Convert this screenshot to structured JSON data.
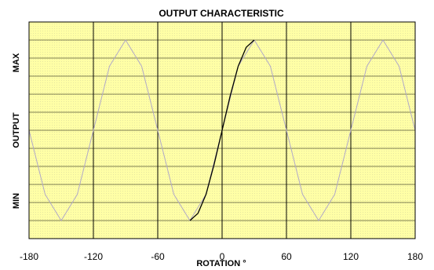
{
  "chart_data": {
    "type": "line",
    "title": "OUTPUT CHARACTERISTIC",
    "xlabel": "ROTATION °",
    "ylabel": "OUTPUT",
    "y_side_labels": {
      "top": "MAX",
      "bottom": "MIN"
    },
    "xlim": [
      -180,
      180
    ],
    "x_ticks": [
      -180,
      -120,
      -60,
      0,
      60,
      120,
      180
    ],
    "x_tick_labels": [
      "-180",
      "-120",
      "-60",
      "0",
      "60",
      "120",
      "180"
    ],
    "ylim": [
      -1.2,
      1.2
    ],
    "grid": true,
    "y_gridline_count": 11,
    "x_gridlines": [
      -120,
      -60,
      0,
      60,
      120
    ],
    "series": [
      {
        "style": "faint-repeat",
        "x": [
          -180,
          -165,
          -150,
          -135,
          -120,
          -105,
          -90,
          -75,
          -60,
          -45,
          -30,
          -15,
          0,
          15,
          30,
          45,
          60,
          75,
          90,
          105,
          120,
          135,
          150,
          165,
          180
        ],
        "values": [
          0,
          -0.71,
          -1,
          -0.71,
          0,
          0.71,
          1,
          0.71,
          0,
          -0.71,
          -1,
          -0.71,
          0,
          0.71,
          1,
          0.71,
          0,
          -0.71,
          -1,
          -0.71,
          0,
          0.71,
          1,
          0.71,
          0
        ]
      },
      {
        "style": "main-cycle",
        "x": [
          -30,
          -22.5,
          -15,
          -7.5,
          0,
          7.5,
          15,
          22.5,
          30
        ],
        "values": [
          -1,
          -0.92,
          -0.71,
          -0.38,
          0,
          0.38,
          0.71,
          0.92,
          1
        ]
      }
    ],
    "colors": {
      "plot_background": "#ffffa6",
      "dot_pattern": "#e6e6a0",
      "grid_major": "#000000",
      "grid_minor": "#000000",
      "main_line": "#000000",
      "faint_line": "#b0a8c8"
    }
  }
}
